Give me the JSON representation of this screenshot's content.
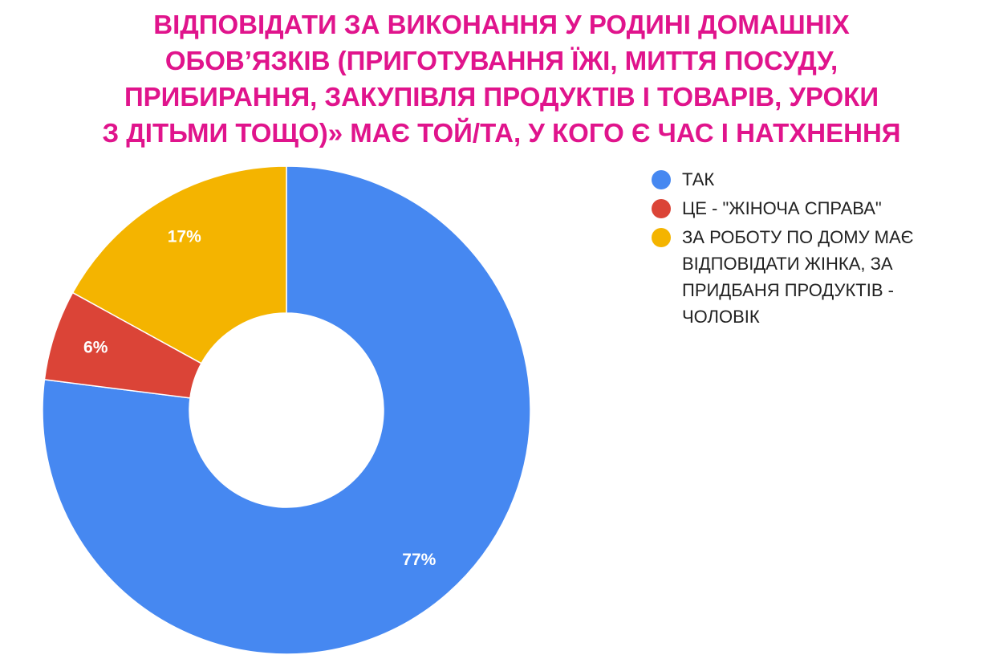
{
  "title": {
    "lines": [
      "ВІДПОВІДАТИ ЗА ВИКОНАННЯ У РОДИНІ ДОМАШНІХ",
      "ОБОВ’ЯЗКІВ (ПРИГОТУВАННЯ ЇЖІ, МИТТЯ ПОСУДУ,",
      "ПРИБИРАННЯ, ЗАКУПІВЛЯ ПРОДУКТІВ І ТОВАРІВ, УРОКИ",
      "З ДІТЬМИ ТОЩО)» МАЄ ТОЙ/ТА, У КОГО Є ЧАС І НАТХНЕННЯ"
    ],
    "color": "#e0148c"
  },
  "chart_data": {
    "type": "pie",
    "variant": "donut",
    "title": "ВІДПОВІДАТИ ЗА ВИКОНАННЯ У РОДИНІ ДОМАШНІХ ОБОВ’ЯЗКІВ (ПРИГОТУВАННЯ ЇЖІ, МИТТЯ ПОСУДУ, ПРИБИРАННЯ, ЗАКУПІВЛЯ ПРОДУКТІВ І ТОВАРІВ, УРОКИ З ДІТЬМИ ТОЩО)» МАЄ ТОЙ/ТА, У КОГО Є ЧАС І НАТХНЕННЯ",
    "legend_position": "right",
    "slices": [
      {
        "label": "ТАК",
        "value": 77,
        "display": "77%",
        "color": "#4688f1"
      },
      {
        "label": "ЦЕ - \"ЖІНОЧА СПРАВА\"",
        "value": 6,
        "display": "6%",
        "color": "#db4437"
      },
      {
        "label": "ЗА РОБОТУ ПО ДОМУ МАЄ ВІДПОВІДАТИ ЖІНКА, ЗА ПРИДБАНЯ ПРОДУКТІВ - ЧОЛОВІК",
        "value": 17,
        "display": "17%",
        "color": "#f4b400"
      }
    ]
  }
}
